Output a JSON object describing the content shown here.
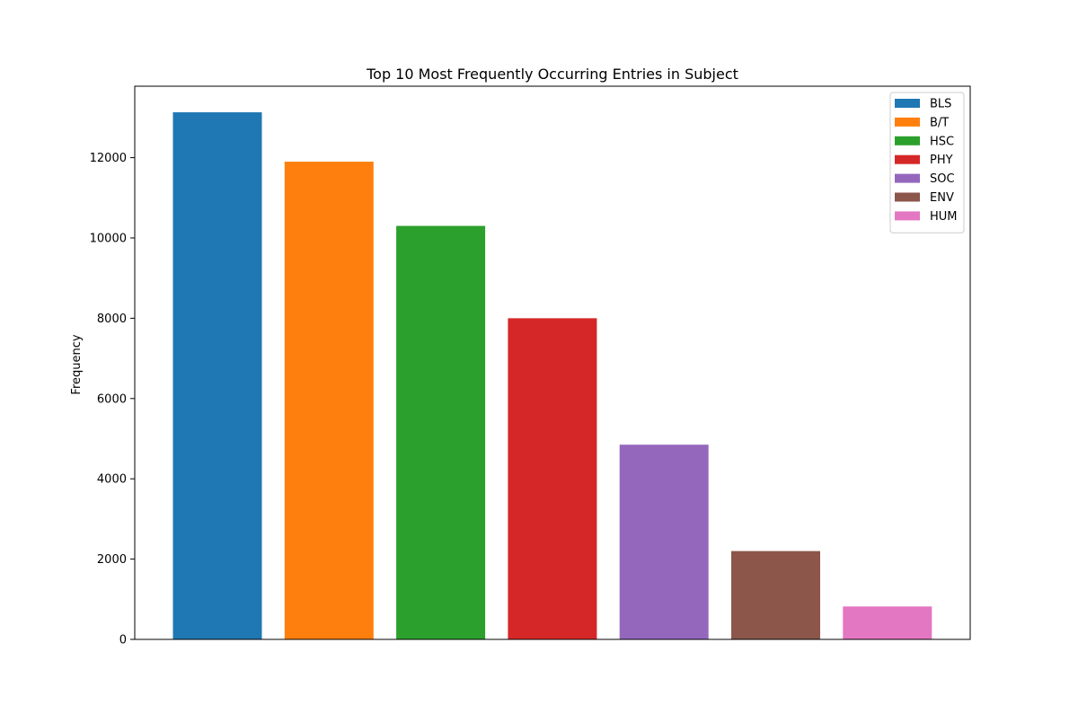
{
  "chart_data": {
    "type": "bar",
    "title": "Top 10 Most Frequently Occurring Entries in Subject",
    "xlabel": "",
    "ylabel": "Frequency",
    "ylim": [
      0,
      13780
    ],
    "yticks": [
      0,
      2000,
      4000,
      6000,
      8000,
      10000,
      12000
    ],
    "ytick_labels": [
      "0",
      "2000",
      "4000",
      "6000",
      "8000",
      "10000",
      "12000"
    ],
    "grid": false,
    "legend_position": "top-right",
    "categories": [
      "BLS",
      "B/T",
      "HSC",
      "PHY",
      "SOC",
      "ENV",
      "HUM"
    ],
    "values": [
      13130,
      11900,
      10300,
      8000,
      4850,
      2200,
      820
    ],
    "series": [
      {
        "name": "BLS",
        "value": 13130,
        "color": "#1f77b4"
      },
      {
        "name": "B/T",
        "value": 11900,
        "color": "#ff7f0e"
      },
      {
        "name": "HSC",
        "value": 10300,
        "color": "#2ca02c"
      },
      {
        "name": "PHY",
        "value": 8000,
        "color": "#d62728"
      },
      {
        "name": "SOC",
        "value": 4850,
        "color": "#9467bd"
      },
      {
        "name": "ENV",
        "value": 2200,
        "color": "#8c564b"
      },
      {
        "name": "HUM",
        "value": 820,
        "color": "#e377c2"
      }
    ]
  }
}
